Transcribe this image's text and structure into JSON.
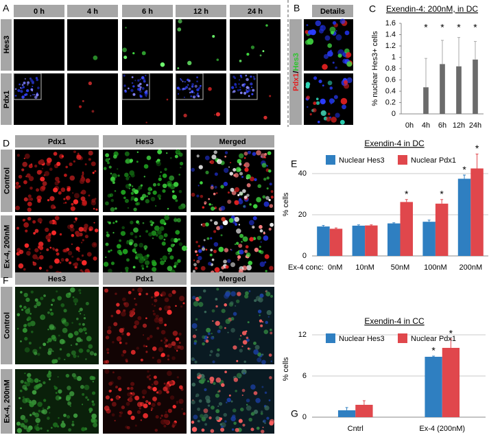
{
  "figure": {
    "A": {
      "label": "A",
      "columns": [
        "0 h",
        "4 h",
        "6 h",
        "12 h",
        "24 h"
      ],
      "rows": [
        "Hes3",
        "Pdx1"
      ]
    },
    "B": {
      "label": "B",
      "column": "Details",
      "rows": [
        "Pdx1",
        "Hes3"
      ]
    },
    "C": {
      "label": "C"
    },
    "D": {
      "label": "D",
      "columns": [
        "Pdx1",
        "Hes3",
        "Merged"
      ],
      "rows": [
        "Control",
        "Ex-4, 200nM"
      ]
    },
    "E": {
      "label": "E"
    },
    "F": {
      "label": "F",
      "columns": [
        "Hes3",
        "Pdx1",
        "Merged"
      ],
      "rows": [
        "Control",
        "Ex-4, 200nM"
      ]
    },
    "G": {
      "label": "G"
    }
  },
  "chart_data": [
    {
      "type": "bar",
      "title": "Exendin-4: 200nM, in DC",
      "ylabel": "% nuclear Hes3+ cells",
      "categories": [
        "0h",
        "4h",
        "6h",
        "12h",
        "24h"
      ],
      "values": [
        0,
        0.47,
        0.88,
        0.84,
        0.96
      ],
      "errors": [
        0,
        0.51,
        0.42,
        0.51,
        0.32
      ],
      "significance": [
        null,
        "*",
        "*",
        "*",
        "*"
      ],
      "color": "#6b6b6b",
      "ylim": [
        0,
        1.6
      ],
      "yticks": [
        0,
        0.2,
        0.4,
        0.6,
        0.8,
        1,
        1.2,
        1.4,
        1.6
      ],
      "grid": false
    },
    {
      "type": "bar",
      "title": "Exendin-4 in DC",
      "ylabel": "% cells",
      "xlabel": "Ex-4 conc:",
      "categories": [
        "0nM",
        "10nM",
        "50nM",
        "100nM",
        "200nM"
      ],
      "series": [
        {
          "name": "Nuclear Hes3",
          "color": "#2f7fc1",
          "values": [
            14.3,
            14.7,
            15.8,
            16.6,
            37.5
          ],
          "errors": [
            0.5,
            0.4,
            0.3,
            0.8,
            1.8
          ],
          "significance": [
            null,
            null,
            null,
            null,
            "*"
          ]
        },
        {
          "name": "Nuclear Pdx1",
          "color": "#e0474c",
          "values": [
            13.2,
            14.8,
            26.2,
            25.4,
            42.5
          ],
          "errors": [
            0.4,
            0.3,
            1.2,
            2.0,
            7.0
          ],
          "significance": [
            null,
            null,
            "*",
            "*",
            "*"
          ]
        }
      ],
      "ylim": [
        0,
        50
      ],
      "yticks": [
        0,
        20,
        40
      ],
      "grid": true
    },
    {
      "type": "bar",
      "title": "Exendin-4 in CC",
      "ylabel": "% cells",
      "categories": [
        "Cntrl",
        "Ex-4 (200nM)"
      ],
      "series": [
        {
          "name": "Nuclear Hes3",
          "color": "#2f7fc1",
          "values": [
            1.0,
            8.8
          ],
          "errors": [
            0.4,
            0.1
          ],
          "significance": [
            null,
            "*"
          ]
        },
        {
          "name": "Nuclear Pdx1",
          "color": "#e0474c",
          "values": [
            1.8,
            10.1
          ],
          "errors": [
            0.6,
            1.3
          ],
          "significance": [
            null,
            "*"
          ]
        }
      ],
      "ylim": [
        0,
        14
      ],
      "yticks": [
        0,
        6,
        12
      ],
      "grid": true
    }
  ]
}
